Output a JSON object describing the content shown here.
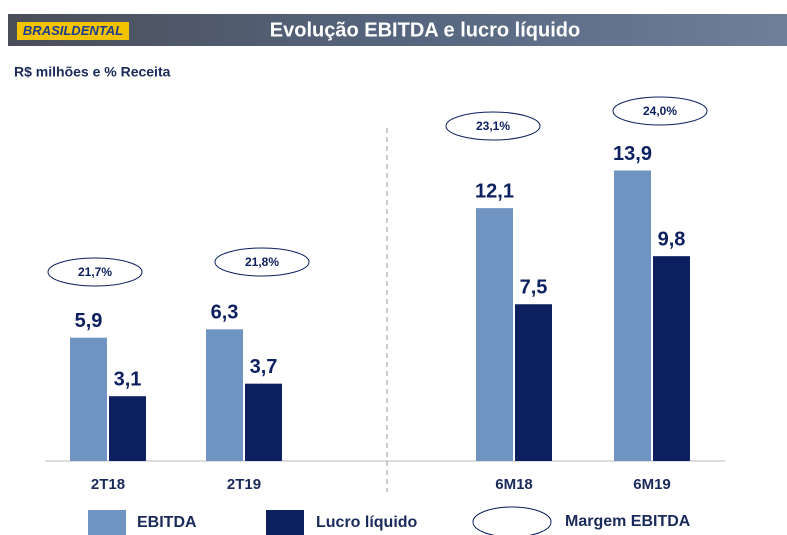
{
  "header": {
    "logo": "BRASILDENTAL"
  },
  "chart_data": {
    "type": "bar",
    "title": "Evolução EBITDA e lucro líquido",
    "subtitle": "R$ milhões e % Receita",
    "categories": [
      "2T18",
      "2T19",
      "6M18",
      "6M19"
    ],
    "series": [
      {
        "name": "EBITDA",
        "color": "#7094c2",
        "values": [
          5.9,
          6.3,
          12.1,
          13.9
        ],
        "value_labels": [
          "5,9",
          "6,3",
          "12,1",
          "13,9"
        ]
      },
      {
        "name": "Lucro líquido",
        "color": "#0c1f5e",
        "values": [
          3.1,
          3.7,
          7.5,
          9.8
        ],
        "value_labels": [
          "3,1",
          "3,7",
          "7,5",
          "9,8"
        ]
      }
    ],
    "margin": {
      "name": "Margem EBITDA",
      "values": [
        21.7,
        21.8,
        23.1,
        24.0
      ],
      "value_labels": [
        "21,7%",
        "21,8%",
        "23,1%",
        "24,0%"
      ]
    },
    "ylim": [
      0,
      15
    ]
  }
}
